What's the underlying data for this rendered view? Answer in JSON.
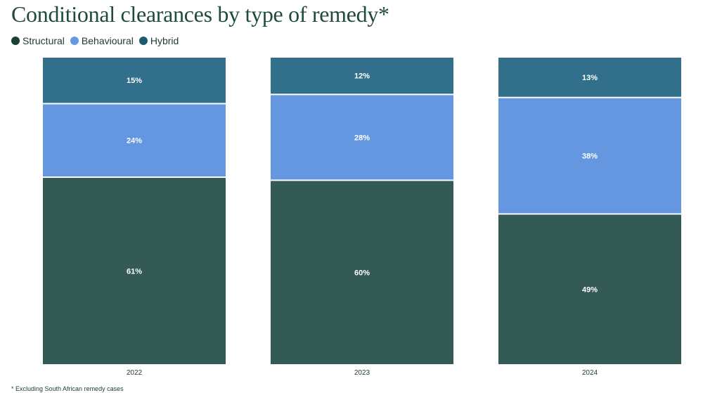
{
  "title": "Conditional clearances by type of remedy*",
  "footnote": "* Excluding South African remedy cases",
  "legend": [
    {
      "label": "Structural",
      "color": "#1a4038"
    },
    {
      "label": "Behavioural",
      "color": "#6299e0"
    },
    {
      "label": "Hybrid",
      "color": "#1e5a70"
    }
  ],
  "chart_data": {
    "type": "bar",
    "stacked": true,
    "normalized_percent": true,
    "title": "Conditional clearances by type of remedy*",
    "categories": [
      "2022",
      "2023",
      "2024"
    ],
    "series": [
      {
        "name": "Structural",
        "color": "#335a54",
        "values": [
          61,
          60,
          49
        ],
        "labels": [
          "61%",
          "60%",
          "49%"
        ]
      },
      {
        "name": "Behavioural",
        "color": "#6497e0",
        "values": [
          24,
          28,
          38
        ],
        "labels": [
          "24%",
          "28%",
          "38%"
        ]
      },
      {
        "name": "Hybrid",
        "color": "#316f8a",
        "values": [
          15,
          12,
          13
        ],
        "labels": [
          "15%",
          "12%",
          "13%"
        ]
      }
    ],
    "ylim": [
      0,
      100
    ],
    "grid": false,
    "legend_position": "top-left"
  }
}
